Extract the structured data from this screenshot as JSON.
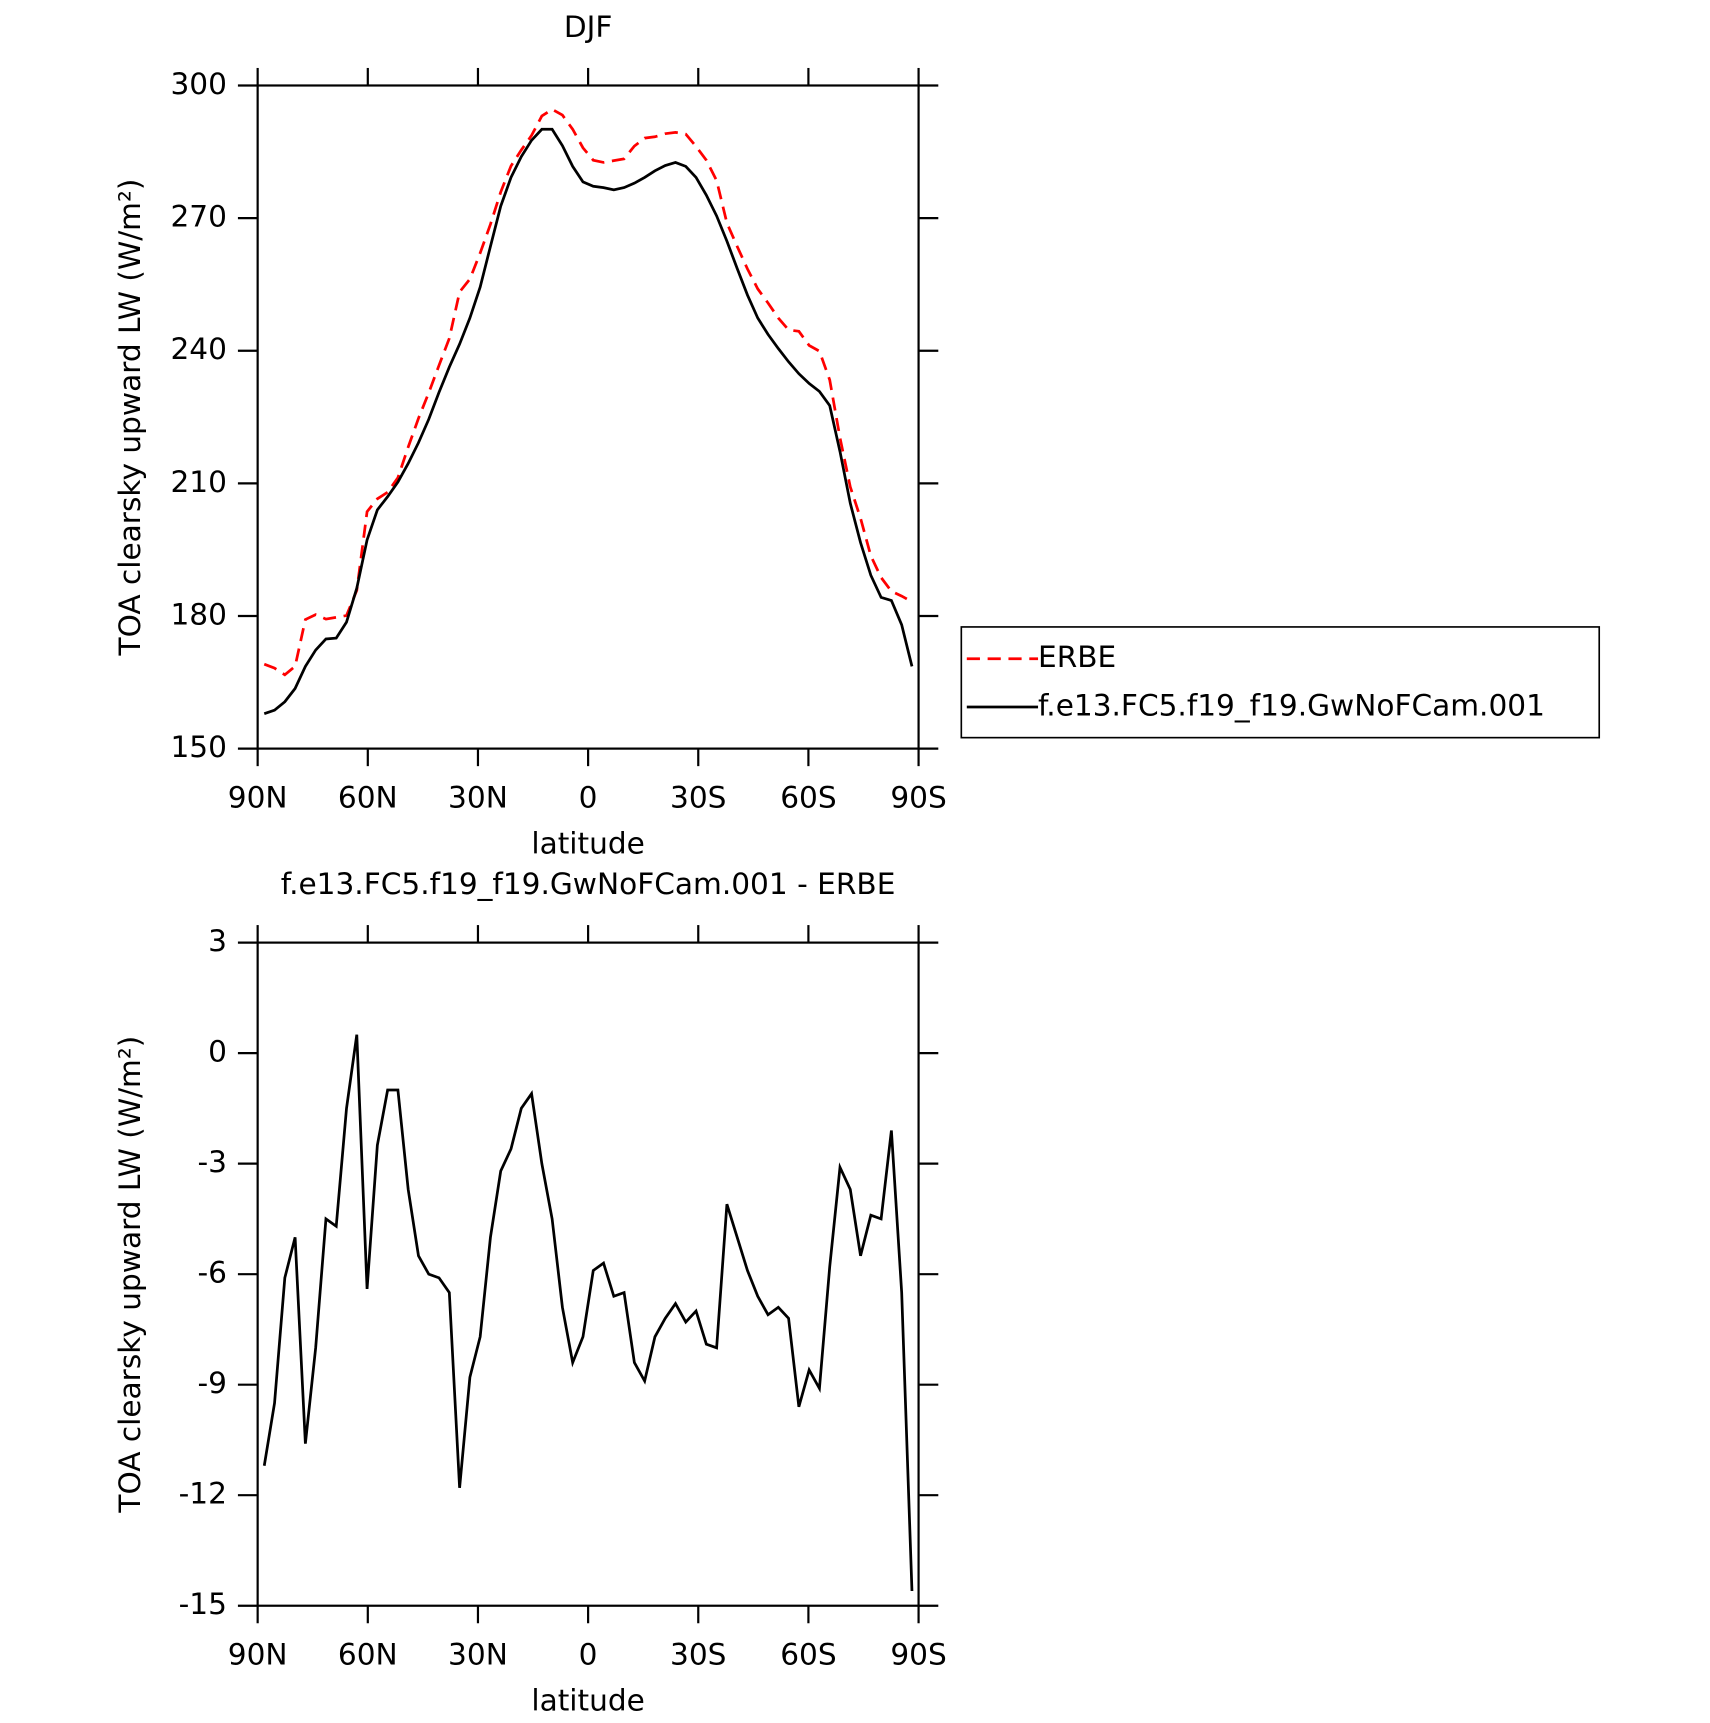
{
  "chart_data": [
    {
      "type": "line",
      "title": "DJF",
      "xlabel": "latitude",
      "ylabel": "TOA clearsky upward LW (W/m²)",
      "x": [
        88.2,
        85.4,
        82.6,
        79.8,
        77,
        74.2,
        71.4,
        68.6,
        65.8,
        63,
        60.2,
        57.4,
        54.6,
        51.8,
        49,
        46.2,
        43.4,
        40.6,
        37.8,
        35,
        32.2,
        29.4,
        26.6,
        23.8,
        21,
        18.2,
        15.4,
        12.6,
        9.8,
        7,
        4.2,
        1.4,
        -1.4,
        -4.2,
        -7,
        -9.8,
        -12.6,
        -15.4,
        -18.2,
        -21,
        -23.8,
        -26.6,
        -29.4,
        -32.2,
        -35,
        -37.8,
        -40.6,
        -43.4,
        -46.2,
        -49,
        -51.8,
        -54.6,
        -57.4,
        -60.2,
        -63,
        -65.8,
        -68.6,
        -71.4,
        -74.2,
        -77,
        -79.8,
        -82.6,
        -85.4,
        -88.2
      ],
      "series": [
        {
          "name": "ERBE",
          "color": "#ff0000",
          "linestyle": "dashed",
          "values": [
            169.1,
            168.2,
            166.7,
            168.6,
            179.2,
            180.3,
            179.3,
            179.7,
            180.1,
            185.8,
            203.6,
            206.5,
            208.0,
            211.3,
            218.2,
            224.7,
            230.5,
            236.7,
            242.8,
            253.3,
            256.2,
            262.1,
            268.6,
            275.9,
            281.8,
            285.4,
            288.7,
            293.1,
            294.6,
            293.3,
            290.1,
            285.9,
            283.1,
            282.6,
            283.0,
            283.4,
            286.3,
            288.1,
            288.4,
            289.1,
            289.4,
            289.0,
            286.2,
            283.1,
            278.5,
            268.9,
            263.6,
            258.5,
            254.0,
            250.8,
            247.4,
            244.7,
            244.4,
            241.2,
            239.9,
            233.4,
            220.3,
            209.2,
            202.1,
            193.6,
            188.7,
            185.6,
            184.5,
            183.2
          ]
        },
        {
          "name": "f.e13.FC5.f19_f19.GwNoFCam.001",
          "color": "#000000",
          "linestyle": "solid",
          "values": [
            157.9,
            158.7,
            160.6,
            163.6,
            168.6,
            172.3,
            174.8,
            175.0,
            178.6,
            186.3,
            197.2,
            204.0,
            207.0,
            210.3,
            214.5,
            219.2,
            224.5,
            230.6,
            236.3,
            241.5,
            247.4,
            254.4,
            263.6,
            272.7,
            279.2,
            283.9,
            287.6,
            290.1,
            290.1,
            286.4,
            281.7,
            278.2,
            277.2,
            276.9,
            276.4,
            276.9,
            277.9,
            279.2,
            280.7,
            281.9,
            282.6,
            281.7,
            279.2,
            275.2,
            270.5,
            264.8,
            258.6,
            252.6,
            247.4,
            243.7,
            240.5,
            237.5,
            234.8,
            232.6,
            230.8,
            227.6,
            217.2,
            205.5,
            196.6,
            189.2,
            184.2,
            183.5,
            178.0,
            168.6
          ]
        }
      ],
      "xlim": [
        90,
        -90
      ],
      "xticks": [
        {
          "value": 90,
          "label": "90N"
        },
        {
          "value": 60,
          "label": "60N"
        },
        {
          "value": 30,
          "label": "30N"
        },
        0,
        {
          "value": -30,
          "label": "30S"
        },
        {
          "value": -60,
          "label": "60S"
        },
        {
          "value": -90,
          "label": "90S"
        }
      ],
      "ylim": [
        150,
        300
      ],
      "yticks": [
        150,
        180,
        210,
        240,
        270,
        300
      ],
      "legend": "outside-right"
    },
    {
      "type": "line",
      "title": "f.e13.FC5.f19_f19.GwNoFCam.001 - ERBE",
      "xlabel": "latitude",
      "ylabel": "TOA clearsky upward LW (W/m²)",
      "x": [
        88.2,
        85.4,
        82.6,
        79.8,
        77,
        74.2,
        71.4,
        68.6,
        65.8,
        63,
        60.2,
        57.4,
        54.6,
        51.8,
        49,
        46.2,
        43.4,
        40.6,
        37.8,
        35,
        32.2,
        29.4,
        26.6,
        23.8,
        21,
        18.2,
        15.4,
        12.6,
        9.8,
        7,
        4.2,
        1.4,
        -1.4,
        -4.2,
        -7,
        -9.8,
        -12.6,
        -15.4,
        -18.2,
        -21,
        -23.8,
        -26.6,
        -29.4,
        -32.2,
        -35,
        -37.8,
        -40.6,
        -43.4,
        -46.2,
        -49,
        -51.8,
        -54.6,
        -57.4,
        -60.2,
        -63,
        -65.8,
        -68.6,
        -71.4,
        -74.2,
        -77,
        -79.8,
        -82.6,
        -85.4,
        -88.2
      ],
      "color": "#000000",
      "values": [
        -11.2,
        -9.5,
        -6.1,
        -5.0,
        -10.6,
        -8.0,
        -4.5,
        -4.7,
        -1.5,
        0.5,
        -6.4,
        -2.5,
        -1.0,
        -1.0,
        -3.7,
        -5.5,
        -6.0,
        -6.1,
        -6.5,
        -11.8,
        -8.8,
        -7.7,
        -5.0,
        -3.2,
        -2.6,
        -1.5,
        -1.1,
        -3.0,
        -4.5,
        -6.9,
        -8.4,
        -7.7,
        -5.9,
        -5.7,
        -6.6,
        -6.5,
        -8.4,
        -8.9,
        -7.7,
        -7.2,
        -6.8,
        -7.3,
        -7.0,
        -7.9,
        -8.0,
        -4.1,
        -5.0,
        -5.9,
        -6.6,
        -7.1,
        -6.9,
        -7.2,
        -9.6,
        -8.6,
        -9.1,
        -5.8,
        -3.1,
        -3.7,
        -5.5,
        -4.4,
        -4.5,
        -2.1,
        -6.5,
        -14.6
      ],
      "xlim": [
        90,
        -90
      ],
      "xticks": [
        {
          "value": 90,
          "label": "90N"
        },
        {
          "value": 60,
          "label": "60N"
        },
        {
          "value": 30,
          "label": "30N"
        },
        0,
        {
          "value": -30,
          "label": "30S"
        },
        {
          "value": -60,
          "label": "60S"
        },
        {
          "value": -90,
          "label": "90S"
        }
      ],
      "ylim": [
        -15,
        3
      ],
      "yticks": [
        -15,
        -12,
        -9,
        -6,
        -3,
        0,
        3
      ]
    }
  ]
}
